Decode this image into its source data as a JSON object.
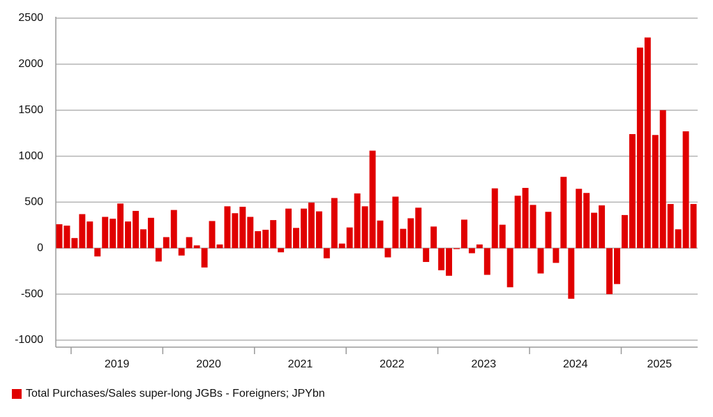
{
  "chart_data": {
    "type": "bar",
    "categories": [
      null,
      null,
      null,
      null,
      null,
      null,
      null,
      null,
      null,
      null,
      null,
      null,
      null,
      null,
      null,
      null,
      null,
      null,
      null,
      null,
      null,
      null,
      null,
      null,
      null,
      null,
      null,
      null,
      null,
      null,
      null,
      null,
      null,
      null,
      null,
      null,
      null,
      null,
      null,
      null,
      null,
      null,
      null,
      null,
      null,
      null,
      null,
      null,
      null,
      null,
      null,
      null,
      null,
      null,
      null,
      null,
      null,
      null,
      null,
      null,
      null,
      null,
      null,
      null,
      null,
      null,
      null,
      null,
      null,
      null,
      null,
      null,
      null,
      null,
      null,
      null,
      null,
      null,
      null,
      null,
      null,
      null,
      null,
      null
    ],
    "x_groups": [
      {
        "label": "2019",
        "start": 2
      },
      {
        "label": "2020",
        "start": 14
      },
      {
        "label": "2021",
        "start": 26
      },
      {
        "label": "2022",
        "start": 38
      },
      {
        "label": "2023",
        "start": 50
      },
      {
        "label": "2024",
        "start": 62
      },
      {
        "label": "2025",
        "start": 74
      }
    ],
    "series": [
      {
        "name": "Total Purchases/Sales super-long JGBs - Foreigners; JPYbn",
        "color": "#e00000",
        "values": [
          260,
          245,
          110,
          370,
          290,
          -90,
          340,
          320,
          485,
          290,
          405,
          205,
          330,
          -145,
          120,
          415,
          -80,
          120,
          30,
          -210,
          295,
          40,
          455,
          380,
          450,
          340,
          185,
          200,
          305,
          -45,
          430,
          220,
          430,
          495,
          400,
          -110,
          545,
          50,
          225,
          595,
          455,
          1060,
          300,
          -100,
          560,
          210,
          325,
          440,
          -150,
          235,
          -240,
          -300,
          -10,
          310,
          -55,
          40,
          -290,
          650,
          255,
          -425,
          570,
          655,
          470,
          -275,
          395,
          -160,
          775,
          -550,
          645,
          600,
          385,
          465,
          -500,
          -390,
          360,
          1240,
          2180,
          2290,
          1230,
          1500,
          480,
          205,
          1270,
          480
        ]
      }
    ],
    "ylim": [
      -1000,
      2500
    ],
    "yticks": [
      -1000,
      -500,
      0,
      500,
      1000,
      1500,
      2000,
      2500
    ],
    "grid": true,
    "legend": "bottom-left"
  }
}
